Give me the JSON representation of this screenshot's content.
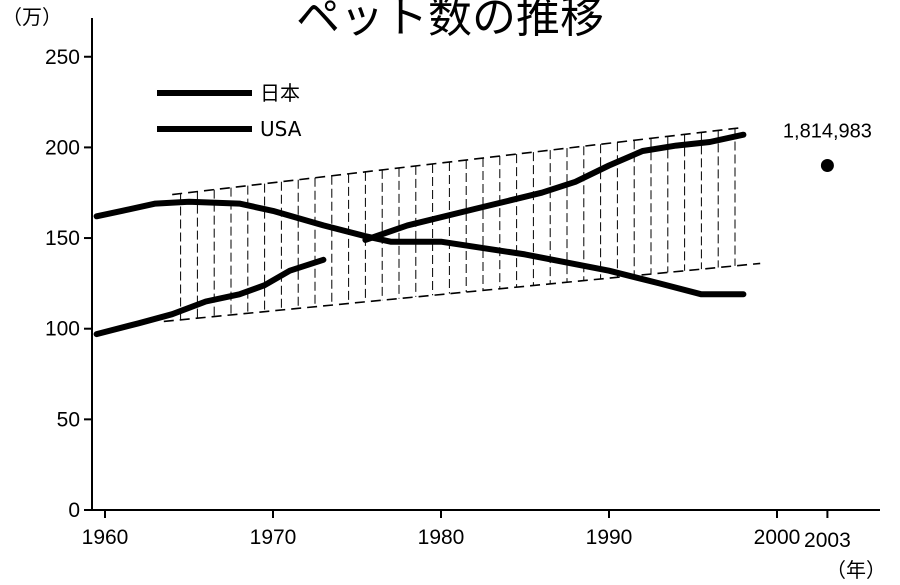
{
  "chart_data": {
    "type": "line",
    "title": "ペット数の推移",
    "y_unit": "（万）",
    "x_unit": "（年）",
    "xlim": [
      1959,
      2005
    ],
    "ylim": [
      0,
      270
    ],
    "x_ticks": [
      1960,
      1970,
      1980,
      1990,
      2000,
      2003
    ],
    "y_ticks": [
      0,
      50,
      100,
      150,
      200,
      250
    ],
    "legend_position": "top-left",
    "series": [
      {
        "name": "日本",
        "style": "solid",
        "x": [
          1959.5,
          1961,
          1963,
          1965,
          1968,
          1970,
          1973,
          1975.5,
          1977,
          1980,
          1985,
          1990,
          1993,
          1995.5,
          1998
        ],
        "y": [
          162,
          165,
          169,
          170,
          169,
          165,
          157,
          151,
          148,
          148,
          141,
          132,
          125,
          119,
          119
        ]
      },
      {
        "name": "USA",
        "style": "solid",
        "segments": [
          {
            "x": [
              1959.5,
              1962,
              1964,
              1966,
              1968,
              1969.5,
              1971,
              1973
            ],
            "y": [
              97,
              103,
              108,
              115,
              119,
              124,
              132,
              138
            ]
          },
          {
            "x": [
              1975.5,
              1978,
              1982,
              1986,
              1988,
              1990,
              1992,
              1994,
              1996,
              1998
            ],
            "y": [
              149,
              157,
              166,
              175,
              181,
              190,
              198,
              201,
              203,
              207
            ]
          }
        ]
      }
    ],
    "trend_lines": [
      {
        "style": "dashed",
        "x": [
          1964,
          1998
        ],
        "y": [
          174,
          211
        ]
      },
      {
        "style": "dashed",
        "x": [
          1963.5,
          1999
        ],
        "y": [
          104,
          136
        ]
      }
    ],
    "hatch_range_x": [
      1964,
      1998
    ],
    "annotations": [
      {
        "text": "1,814,983",
        "x": 2003,
        "y": 190
      }
    ],
    "grid": false
  }
}
